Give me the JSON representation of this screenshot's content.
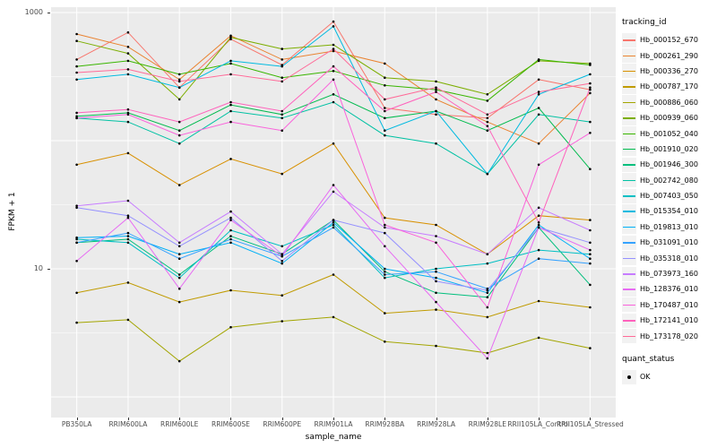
{
  "chart_data": {
    "type": "line",
    "title": "",
    "xlabel": "sample_name",
    "ylabel": "FPKM + 1",
    "y_scale": "log10",
    "ylim": [
      1,
      1000
    ],
    "panel_bg": "#EBEBEB",
    "grid_color": "#FFFFFF",
    "point_color": "#000000",
    "y_ticks": [
      {
        "label": "1000",
        "value": 1000
      },
      {
        "label": "10",
        "value": 10
      }
    ],
    "grid": {
      "major_values": [
        1000,
        100,
        10,
        1
      ],
      "minor_values": [
        316.23,
        31.62,
        3.162
      ]
    },
    "categories": [
      "PB350LA",
      "RRIM600LA",
      "RRIM600LE",
      "RRIM600SE",
      "RRIM600PE",
      "RRIM901LA",
      "RRIM928BA",
      "RRIM928LA",
      "RRIM928LE",
      "RRII105LA_Control",
      "RRII105LA_Stressed"
    ],
    "legend_title": "tracking_id",
    "quant_legend": {
      "title": "quant_status",
      "label": "OK"
    },
    "series": [
      {
        "name": "Hb_000152_670",
        "color": "#F8766D",
        "values": [
          430,
          700,
          260,
          620,
          390,
          850,
          180,
          160,
          150,
          300,
          250
        ]
      },
      {
        "name": "Hb_000261_290",
        "color": "#EA8331",
        "values": [
          680,
          540,
          300,
          660,
          430,
          500,
          400,
          210,
          140,
          95,
          235
        ]
      },
      {
        "name": "Hb_000336_270",
        "color": "#D89000",
        "values": [
          65,
          80,
          45,
          72,
          55,
          95,
          25,
          22,
          13,
          26,
          24
        ]
      },
      {
        "name": "Hb_000787_170",
        "color": "#C09B00",
        "values": [
          6.5,
          7.8,
          5.5,
          6.8,
          6.2,
          9.0,
          4.5,
          4.8,
          4.2,
          5.6,
          5.0
        ]
      },
      {
        "name": "Hb_000886_060",
        "color": "#A3A500",
        "values": [
          3.8,
          4.0,
          1.9,
          3.5,
          3.9,
          4.2,
          2.7,
          2.5,
          2.2,
          2.9,
          2.4
        ]
      },
      {
        "name": "Hb_000939_060",
        "color": "#7CAE00",
        "values": [
          600,
          480,
          210,
          640,
          520,
          560,
          310,
          290,
          230,
          420,
          400
        ]
      },
      {
        "name": "Hb_001052_040",
        "color": "#39B600",
        "values": [
          380,
          420,
          330,
          400,
          310,
          350,
          270,
          250,
          205,
          430,
          390
        ]
      },
      {
        "name": "Hb_001910_020",
        "color": "#00BB4E",
        "values": [
          155,
          165,
          120,
          190,
          160,
          230,
          150,
          170,
          120,
          180,
          60
        ]
      },
      {
        "name": "Hb_001946_300",
        "color": "#00BF7D",
        "values": [
          16,
          17,
          9,
          18,
          13,
          24,
          9.5,
          6.5,
          6.0,
          21,
          7.5
        ]
      },
      {
        "name": "Hb_002742_080",
        "color": "#00C1A3",
        "values": [
          150,
          140,
          95,
          170,
          150,
          200,
          110,
          95,
          55,
          160,
          140
        ]
      },
      {
        "name": "Hb_007403_050",
        "color": "#00BFC4",
        "values": [
          17,
          16,
          8.5,
          20,
          15,
          22,
          8.5,
          10,
          11,
          14,
          13
        ]
      },
      {
        "name": "Hb_015354_010",
        "color": "#00BAE0",
        "values": [
          300,
          330,
          260,
          420,
          380,
          780,
          120,
          170,
          55,
          230,
          330
        ]
      },
      {
        "name": "Hb_019813_010",
        "color": "#00B0F6",
        "values": [
          17.5,
          18,
          13,
          16,
          11,
          23,
          10,
          8.5,
          6.5,
          22,
          12
        ]
      },
      {
        "name": "Hb_031091_010",
        "color": "#35A2FF",
        "values": [
          16,
          19,
          12,
          17,
          12.5,
          21,
          9,
          9.5,
          7,
          12,
          11
        ]
      },
      {
        "name": "Hb_035318_010",
        "color": "#9590FF",
        "values": [
          30,
          26,
          15,
          25,
          11.5,
          24,
          19,
          8,
          6.8,
          21,
          16
        ]
      },
      {
        "name": "Hb_073973_160",
        "color": "#C77CFF",
        "values": [
          31,
          34,
          16,
          28,
          13,
          40,
          21,
          18,
          13,
          30,
          20
        ]
      },
      {
        "name": "Hb_128376_010",
        "color": "#E76BF3",
        "values": [
          11.5,
          25,
          7,
          24,
          12.5,
          45,
          15,
          5.5,
          2.0,
          21,
          14
        ]
      },
      {
        "name": "Hb_170487_010",
        "color": "#FA62DB",
        "values": [
          150,
          160,
          110,
          140,
          120,
          300,
          22,
          16,
          5,
          65,
          115
        ]
      },
      {
        "name": "Hb_172141_010",
        "color": "#FF62BC",
        "values": [
          165,
          175,
          140,
          200,
          170,
          380,
          170,
          240,
          130,
          23,
          260
        ]
      },
      {
        "name": "Hb_173178_020",
        "color": "#FF6A98",
        "values": [
          340,
          360,
          290,
          330,
          290,
          520,
          210,
          260,
          160,
          240,
          280
        ]
      }
    ]
  }
}
